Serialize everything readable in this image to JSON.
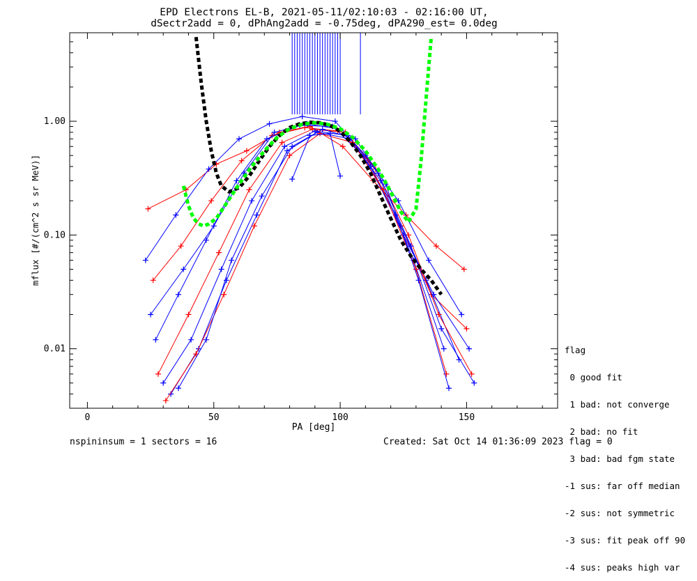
{
  "title_line1": "EPD Electrons EL-B, 2021-05-11/02:10:03 - 02:16:00 UT,",
  "title_line2": "dSectr2add = 0, dPhAng2add = -0.75deg, dPA290_est=   0.0deg",
  "footer_left": "nspininsum =  1  sectors = 16",
  "footer_right": "Created: Sat Oct 14 01:36:09 2023   flag = 0",
  "legend": {
    "title": "flag",
    "entries": [
      " 0 good fit",
      " 1 bad: not converge",
      " 2 bad: no fit",
      " 3 bad: bad fgm state",
      "-1 sus: far off median",
      "-2 sus: not symmetric",
      "-3 sus: fit peak off 90",
      "-4 sus: peaks high var"
    ]
  },
  "colors": {
    "red": "#ff0000",
    "blue": "#0000ff",
    "black": "#000000",
    "green": "#00ff00"
  },
  "chart_data": {
    "type": "line",
    "xlabel": "PA [deg]",
    "ylabel": "mflux [#/(cm^2 s sr MeV)]",
    "xlim": [
      -7,
      186
    ],
    "ylim": [
      0.003,
      6.0
    ],
    "yscale": "log",
    "x_ticks": [
      0,
      50,
      100,
      150
    ],
    "x_tick_labels": [
      "0",
      "50",
      "100",
      "150"
    ],
    "y_ticks": [
      0.01,
      0.1,
      1.0
    ],
    "y_tick_labels": [
      "0.01",
      "0.10",
      "1.00"
    ],
    "grid": false,
    "series": [
      {
        "color": "red",
        "marker": "+",
        "x": [
          24,
          39,
          51,
          63,
          76,
          88,
          101,
          113,
          126,
          138,
          149
        ],
        "y": [
          0.17,
          0.25,
          0.42,
          0.55,
          0.8,
          0.9,
          0.6,
          0.3,
          0.15,
          0.08,
          0.05
        ]
      },
      {
        "color": "blue",
        "marker": "+",
        "x": [
          23,
          35,
          48,
          60,
          72,
          85,
          98,
          110,
          123,
          135,
          148
        ],
        "y": [
          0.06,
          0.15,
          0.38,
          0.7,
          0.95,
          1.1,
          1.0,
          0.5,
          0.2,
          0.06,
          0.02
        ]
      },
      {
        "color": "red",
        "marker": "+",
        "x": [
          26,
          37,
          49,
          61,
          73,
          86,
          99,
          111,
          124,
          136,
          150
        ],
        "y": [
          0.04,
          0.08,
          0.2,
          0.45,
          0.75,
          0.88,
          0.82,
          0.45,
          0.12,
          0.03,
          0.015
        ]
      },
      {
        "color": "blue",
        "marker": "+",
        "x": [
          25,
          38,
          50,
          62,
          74,
          87,
          100,
          112,
          125,
          137,
          151
        ],
        "y": [
          0.02,
          0.05,
          0.12,
          0.35,
          0.8,
          0.95,
          0.85,
          0.4,
          0.1,
          0.03,
          0.01
        ]
      },
      {
        "color": "blue",
        "marker": "+",
        "x": [
          27,
          36,
          47,
          59,
          71,
          84,
          97,
          109,
          122,
          134,
          147
        ],
        "y": [
          0.012,
          0.03,
          0.09,
          0.3,
          0.7,
          0.92,
          0.9,
          0.5,
          0.15,
          0.04,
          0.008
        ]
      },
      {
        "color": "red",
        "marker": "+",
        "x": [
          28,
          40,
          52,
          64,
          77,
          89,
          102,
          114,
          127,
          139,
          152
        ],
        "y": [
          0.006,
          0.02,
          0.07,
          0.25,
          0.65,
          0.85,
          0.8,
          0.38,
          0.1,
          0.02,
          0.006
        ]
      },
      {
        "color": "blue",
        "marker": "+",
        "x": [
          30,
          41,
          53,
          65,
          78,
          90,
          103,
          115,
          128,
          140,
          153
        ],
        "y": [
          0.005,
          0.012,
          0.05,
          0.2,
          0.6,
          0.82,
          0.75,
          0.35,
          0.08,
          0.015,
          0.005
        ]
      },
      {
        "color": "blue",
        "marker": "+",
        "x": [
          33,
          44,
          55,
          67,
          79,
          91,
          104,
          116,
          129,
          141
        ],
        "y": [
          0.004,
          0.01,
          0.04,
          0.15,
          0.55,
          0.8,
          0.7,
          0.3,
          0.06,
          0.01
        ]
      },
      {
        "color": "red",
        "marker": "+",
        "x": [
          31,
          43,
          54,
          66,
          80,
          92,
          105,
          117,
          130,
          142
        ],
        "y": [
          0.0035,
          0.009,
          0.03,
          0.12,
          0.5,
          0.78,
          0.65,
          0.25,
          0.05,
          0.006
        ]
      },
      {
        "color": "blue",
        "marker": "+",
        "x": [
          36,
          47,
          57,
          69,
          81,
          93,
          106,
          118,
          131,
          143
        ],
        "y": [
          0.0045,
          0.012,
          0.06,
          0.22,
          0.6,
          0.85,
          0.7,
          0.28,
          0.04,
          0.0045
        ]
      },
      {
        "color": "blue",
        "marker": "+",
        "x": [
          81,
          88,
          96,
          100
        ],
        "y": [
          0.31,
          0.75,
          0.78,
          0.33
        ]
      },
      {
        "color": "black",
        "marker": "none",
        "dashed": true,
        "x": [
          43,
          45,
          47,
          49,
          51,
          53,
          56,
          60,
          64,
          68,
          72,
          76,
          80,
          84,
          88,
          92,
          96,
          100,
          104,
          108,
          112,
          116,
          120,
          124,
          128,
          132,
          136,
          140
        ],
        "y": [
          5.5,
          2.2,
          1.0,
          0.55,
          0.35,
          0.27,
          0.24,
          0.26,
          0.33,
          0.45,
          0.6,
          0.75,
          0.88,
          0.95,
          0.98,
          0.97,
          0.92,
          0.82,
          0.66,
          0.5,
          0.35,
          0.22,
          0.14,
          0.09,
          0.065,
          0.05,
          0.04,
          0.03
        ]
      },
      {
        "color": "green",
        "marker": "none",
        "dashed": true,
        "x": [
          38,
          40,
          42,
          44,
          46,
          48,
          51,
          55,
          60,
          65,
          70,
          75,
          80,
          85,
          90,
          95,
          100,
          105,
          110,
          115,
          120,
          124,
          127,
          130,
          132,
          134,
          136
        ],
        "y": [
          0.27,
          0.18,
          0.14,
          0.125,
          0.12,
          0.125,
          0.14,
          0.19,
          0.28,
          0.4,
          0.55,
          0.72,
          0.86,
          0.94,
          0.97,
          0.94,
          0.86,
          0.72,
          0.55,
          0.38,
          0.24,
          0.16,
          0.13,
          0.17,
          0.45,
          1.6,
          5.5
        ]
      }
    ],
    "vertical_lines": {
      "color": "blue",
      "y_from": 1.15,
      "y_to": 6.0,
      "x": [
        81,
        82,
        83,
        84,
        85,
        86,
        87,
        88,
        89,
        90,
        91,
        92,
        93,
        94,
        95,
        96,
        97,
        98,
        99,
        100,
        108
      ]
    }
  }
}
